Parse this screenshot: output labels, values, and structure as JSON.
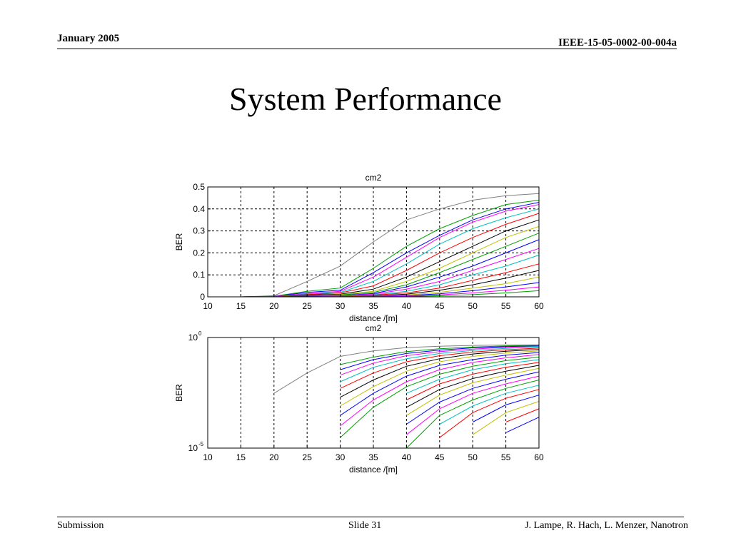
{
  "header": {
    "date": "January 2005",
    "doc_id": "IEEE-15-05-0002-00-004a"
  },
  "slide": {
    "title": "System Performance"
  },
  "footer": {
    "left": "Submission",
    "center": "Slide 31",
    "right": "J. Lampe, R. Hach, L. Menzer, Nanotron"
  },
  "chart_data": [
    {
      "type": "line",
      "title": "cm2",
      "xlabel": "distance /[m]",
      "ylabel": "BER",
      "yscale": "linear",
      "xlim": [
        10,
        60
      ],
      "ylim": [
        0,
        0.5
      ],
      "grid": true,
      "x_ticks": [
        "10",
        "15",
        "20",
        "25",
        "30",
        "35",
        "40",
        "45",
        "50",
        "55",
        "60"
      ],
      "y_ticks": [
        "0",
        "0.1",
        "0.2",
        "0.3",
        "0.4",
        "0.5"
      ],
      "x": [
        10,
        15,
        20,
        25,
        30,
        35,
        40,
        45,
        50,
        55,
        60
      ],
      "series": [
        {
          "color": "#808080",
          "values": [
            0,
            0,
            0.005,
            0.07,
            0.14,
            0.25,
            0.35,
            0.4,
            0.44,
            0.46,
            0.47
          ]
        },
        {
          "color": "#00a000",
          "values": [
            0,
            0,
            0.003,
            0.025,
            0.04,
            0.13,
            0.23,
            0.31,
            0.37,
            0.42,
            0.44
          ]
        },
        {
          "color": "#0000ff",
          "values": [
            0,
            0,
            0.002,
            0.02,
            0.03,
            0.11,
            0.2,
            0.28,
            0.35,
            0.4,
            0.43
          ]
        },
        {
          "color": "#ff00ff",
          "values": [
            0,
            0,
            0.002,
            0.015,
            0.025,
            0.09,
            0.18,
            0.27,
            0.34,
            0.39,
            0.42
          ]
        },
        {
          "color": "#00c0c0",
          "values": [
            0,
            0,
            0.001,
            0.012,
            0.02,
            0.07,
            0.15,
            0.24,
            0.31,
            0.36,
            0.4
          ]
        },
        {
          "color": "#ff0000",
          "values": [
            0,
            0,
            0.001,
            0.01,
            0.018,
            0.05,
            0.12,
            0.2,
            0.27,
            0.33,
            0.38
          ]
        },
        {
          "color": "#000000",
          "values": [
            0,
            0,
            0.001,
            0.008,
            0.012,
            0.035,
            0.09,
            0.16,
            0.23,
            0.3,
            0.35
          ]
        },
        {
          "color": "#c0c000",
          "values": [
            0,
            0,
            0.001,
            0.006,
            0.01,
            0.025,
            0.07,
            0.13,
            0.2,
            0.27,
            0.32
          ]
        },
        {
          "color": "#00a000",
          "values": [
            0,
            0,
            0,
            0.005,
            0.008,
            0.02,
            0.055,
            0.11,
            0.17,
            0.23,
            0.29
          ]
        },
        {
          "color": "#0000ff",
          "values": [
            0,
            0,
            0,
            0.004,
            0.006,
            0.015,
            0.045,
            0.09,
            0.14,
            0.2,
            0.26
          ]
        },
        {
          "color": "#ff00ff",
          "values": [
            0,
            0,
            0,
            0.003,
            0.005,
            0.012,
            0.035,
            0.07,
            0.12,
            0.17,
            0.22
          ]
        },
        {
          "color": "#00c0c0",
          "values": [
            0,
            0,
            0,
            0.002,
            0.004,
            0.009,
            0.025,
            0.055,
            0.1,
            0.14,
            0.19
          ]
        },
        {
          "color": "#ff0000",
          "values": [
            0,
            0,
            0,
            0.002,
            0.003,
            0.007,
            0.018,
            0.04,
            0.075,
            0.11,
            0.15
          ]
        },
        {
          "color": "#000000",
          "values": [
            0,
            0,
            0,
            0.001,
            0.002,
            0.005,
            0.012,
            0.03,
            0.055,
            0.085,
            0.12
          ]
        },
        {
          "color": "#c0c000",
          "values": [
            0,
            0,
            0,
            0.001,
            0.002,
            0.004,
            0.008,
            0.02,
            0.04,
            0.06,
            0.09
          ]
        },
        {
          "color": "#0000ff",
          "values": [
            0,
            0,
            0,
            0.001,
            0.001,
            0.003,
            0.006,
            0.014,
            0.028,
            0.045,
            0.065
          ]
        },
        {
          "color": "#ff00ff",
          "values": [
            0,
            0,
            0,
            0,
            0.001,
            0.002,
            0.004,
            0.009,
            0.018,
            0.03,
            0.045
          ]
        },
        {
          "color": "#00a000",
          "values": [
            0,
            0,
            0,
            0,
            0,
            0.001,
            0.002,
            0.005,
            0.01,
            0.018,
            0.028
          ]
        }
      ]
    },
    {
      "type": "line",
      "title": "cm2",
      "xlabel": "distance /[m]",
      "ylabel": "BER",
      "yscale": "log",
      "xlim": [
        10,
        60
      ],
      "ylim": [
        1e-05,
        1
      ],
      "grid": true,
      "x_ticks": [
        "10",
        "15",
        "20",
        "25",
        "30",
        "35",
        "40",
        "45",
        "50",
        "55",
        "60"
      ],
      "y_ticks": [
        {
          "base": "10",
          "exp": "0",
          "value": 1
        },
        {
          "base": "10",
          "exp": "-5",
          "value": 1e-05
        }
      ],
      "x": [
        20,
        25,
        30,
        35,
        40,
        45,
        50,
        55,
        60
      ],
      "series": [
        {
          "color": "#808080",
          "values": [
            0.003,
            0.025,
            0.14,
            0.25,
            0.35,
            0.4,
            0.44,
            0.46,
            0.47
          ]
        },
        {
          "color": "#00a000",
          "values": [
            null,
            null,
            0.06,
            0.13,
            0.23,
            0.31,
            0.37,
            0.42,
            0.44
          ]
        },
        {
          "color": "#0000ff",
          "values": [
            null,
            null,
            0.035,
            0.1,
            0.19,
            0.27,
            0.34,
            0.39,
            0.42
          ]
        },
        {
          "color": "#ff00ff",
          "values": [
            null,
            null,
            0.02,
            0.07,
            0.15,
            0.23,
            0.3,
            0.36,
            0.4
          ]
        },
        {
          "color": "#00c0c0",
          "values": [
            null,
            null,
            0.01,
            0.045,
            0.11,
            0.19,
            0.26,
            0.32,
            0.37
          ]
        },
        {
          "color": "#ff0000",
          "values": [
            null,
            null,
            0.005,
            0.025,
            0.08,
            0.15,
            0.22,
            0.28,
            0.33
          ]
        },
        {
          "color": "#000000",
          "values": [
            null,
            null,
            0.002,
            0.012,
            0.05,
            0.11,
            0.18,
            0.24,
            0.29
          ]
        },
        {
          "color": "#c0c000",
          "values": [
            null,
            null,
            0.0008,
            0.006,
            0.03,
            0.08,
            0.14,
            0.2,
            0.25
          ]
        },
        {
          "color": "#0000ff",
          "values": [
            null,
            null,
            0.0003,
            0.003,
            0.018,
            0.055,
            0.1,
            0.16,
            0.21
          ]
        },
        {
          "color": "#ff00ff",
          "values": [
            null,
            null,
            0.0001,
            0.0015,
            0.01,
            0.035,
            0.075,
            0.12,
            0.17
          ]
        },
        {
          "color": "#00a000",
          "values": [
            null,
            null,
            3e-05,
            0.0007,
            0.006,
            0.022,
            0.05,
            0.09,
            0.13
          ]
        },
        {
          "color": "#00c0c0",
          "values": [
            null,
            null,
            null,
            null,
            0.003,
            0.013,
            0.035,
            0.065,
            0.1
          ]
        },
        {
          "color": "#ff0000",
          "values": [
            null,
            null,
            null,
            null,
            0.0015,
            0.008,
            0.022,
            0.045,
            0.075
          ]
        },
        {
          "color": "#000000",
          "values": [
            null,
            null,
            null,
            null,
            0.0007,
            0.0045,
            0.014,
            0.03,
            0.055
          ]
        },
        {
          "color": "#c0c000",
          "values": [
            null,
            null,
            null,
            null,
            0.0003,
            0.0025,
            0.009,
            0.02,
            0.04
          ]
        },
        {
          "color": "#0000ff",
          "values": [
            null,
            null,
            null,
            null,
            0.00012,
            0.0012,
            0.005,
            0.013,
            0.028
          ]
        },
        {
          "color": "#ff00ff",
          "values": [
            null,
            null,
            null,
            null,
            4e-05,
            0.0006,
            0.003,
            0.008,
            0.018
          ]
        },
        {
          "color": "#00a000",
          "values": [
            null,
            null,
            null,
            null,
            1e-05,
            0.0003,
            0.0015,
            0.005,
            0.012
          ]
        },
        {
          "color": "#00c0c0",
          "values": [
            null,
            null,
            null,
            null,
            null,
            0.00012,
            0.0008,
            0.003,
            0.007
          ]
        },
        {
          "color": "#ff0000",
          "values": [
            null,
            null,
            null,
            null,
            null,
            3e-05,
            0.0004,
            0.0018,
            0.0045
          ]
        },
        {
          "color": "#0000ff",
          "values": [
            null,
            null,
            null,
            null,
            null,
            null,
            0.00015,
            0.0009,
            0.0025
          ]
        },
        {
          "color": "#c0c000",
          "values": [
            null,
            null,
            null,
            null,
            null,
            null,
            4e-05,
            0.0004,
            0.0013
          ]
        },
        {
          "color": "#ff0000",
          "values": [
            null,
            null,
            null,
            null,
            null,
            null,
            null,
            0.00015,
            0.0006
          ]
        },
        {
          "color": "#0000ff",
          "values": [
            null,
            null,
            null,
            null,
            null,
            null,
            null,
            5e-05,
            0.00025
          ]
        }
      ]
    }
  ]
}
